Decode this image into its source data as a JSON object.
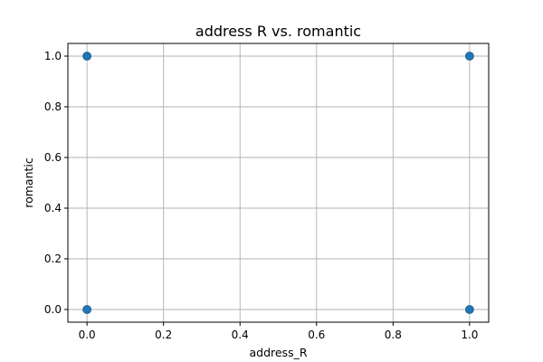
{
  "chart_data": {
    "type": "scatter",
    "title": "address R vs. romantic",
    "xlabel": "address_R",
    "ylabel": "romantic",
    "xlim": [
      -0.05,
      1.05
    ],
    "ylim": [
      -0.05,
      1.05
    ],
    "xticks": [
      0.0,
      0.2,
      0.4,
      0.6,
      0.8,
      1.0
    ],
    "yticks": [
      0.0,
      0.2,
      0.4,
      0.6,
      0.8,
      1.0
    ],
    "xtick_labels": [
      "0.0",
      "0.2",
      "0.4",
      "0.6",
      "0.8",
      "1.0"
    ],
    "ytick_labels": [
      "0.0",
      "0.2",
      "0.4",
      "0.6",
      "0.8",
      "1.0"
    ],
    "grid": true,
    "points": [
      {
        "x": 0,
        "y": 1
      },
      {
        "x": 1,
        "y": 1
      },
      {
        "x": 0,
        "y": 0
      },
      {
        "x": 1,
        "y": 0
      }
    ],
    "marker_color": "#1f77b4",
    "edge_color": "#1a5a8a"
  }
}
